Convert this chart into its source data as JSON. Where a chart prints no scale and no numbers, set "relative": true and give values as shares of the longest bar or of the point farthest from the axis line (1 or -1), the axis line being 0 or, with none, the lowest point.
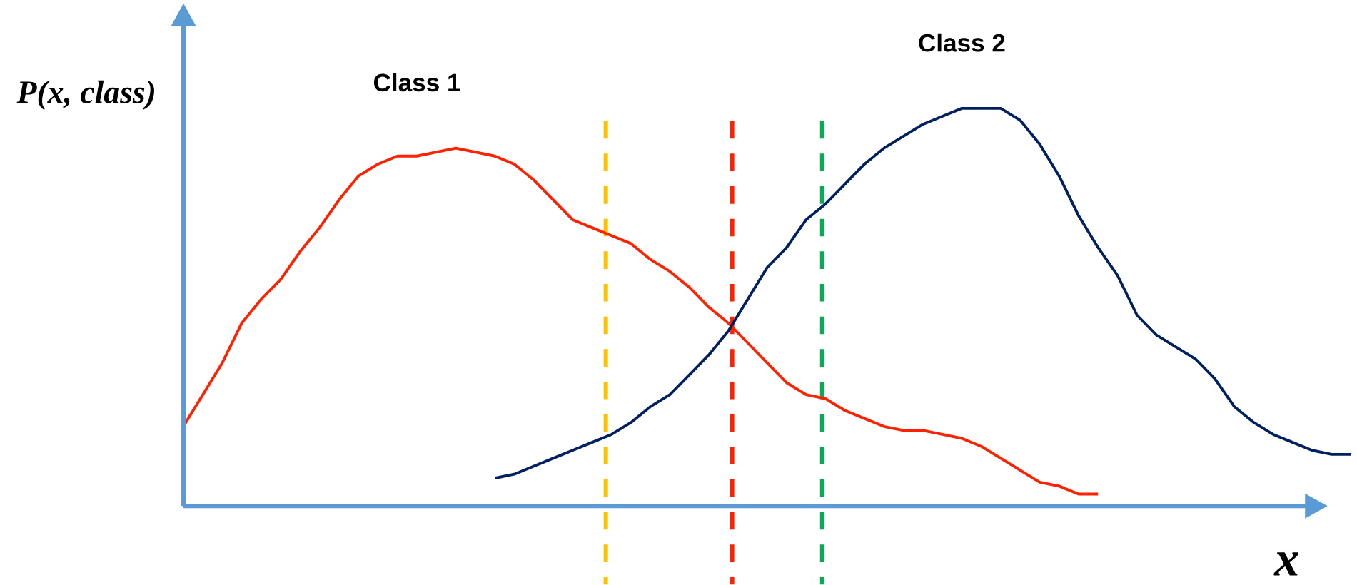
{
  "chart_data": {
    "type": "line",
    "relative": true,
    "annotations": [
      "P(x, class)",
      "x"
    ],
    "categories": [
      null,
      null,
      null,
      null,
      null,
      null,
      null,
      null,
      null,
      null,
      null,
      null,
      null,
      null,
      null,
      null,
      null,
      null,
      null,
      null,
      null,
      null,
      null,
      null,
      null,
      null,
      null,
      null,
      null,
      null,
      null,
      null,
      null,
      null,
      null,
      null,
      null,
      null,
      null,
      null,
      null,
      null,
      null,
      null,
      null,
      null,
      null,
      null,
      null,
      null,
      null,
      null,
      null,
      null,
      null,
      null,
      null,
      null,
      null,
      null,
      null
    ],
    "series": [
      {
        "name": "Class 1",
        "color": "#ff2200",
        "values": [
          0.2,
          0.28,
          0.36,
          0.46,
          0.52,
          0.57,
          0.64,
          0.7,
          0.77,
          0.83,
          0.86,
          0.88,
          0.88,
          0.89,
          0.9,
          0.89,
          0.88,
          0.86,
          0.82,
          0.77,
          0.72,
          0.7,
          0.68,
          0.66,
          0.62,
          0.59,
          0.55,
          0.5,
          0.46,
          0.41,
          0.36,
          0.31,
          0.28,
          0.27,
          0.24,
          0.22,
          0.2,
          0.19,
          0.19,
          0.18,
          0.17,
          0.15,
          0.12,
          0.09,
          0.06,
          0.05,
          0.03,
          0.03,
          null,
          null,
          null,
          null,
          null,
          null,
          null,
          null,
          null,
          null,
          null,
          null,
          null
        ]
      },
      {
        "name": "Class 2",
        "color": "#002060",
        "values": [
          null,
          null,
          null,
          null,
          null,
          null,
          null,
          null,
          null,
          null,
          null,
          null,
          null,
          null,
          null,
          null,
          0.07,
          0.08,
          0.1,
          0.12,
          0.14,
          0.16,
          0.18,
          0.21,
          0.25,
          0.28,
          0.33,
          0.38,
          0.44,
          0.52,
          0.6,
          0.65,
          0.72,
          0.76,
          0.81,
          0.86,
          0.9,
          0.93,
          0.96,
          0.98,
          1.0,
          1.0,
          1.0,
          0.97,
          0.91,
          0.83,
          0.73,
          0.65,
          0.58,
          0.48,
          0.43,
          0.4,
          0.37,
          0.32,
          0.25,
          0.21,
          0.18,
          0.16,
          0.14,
          0.13,
          0.13
        ]
      }
    ]
  }
}
